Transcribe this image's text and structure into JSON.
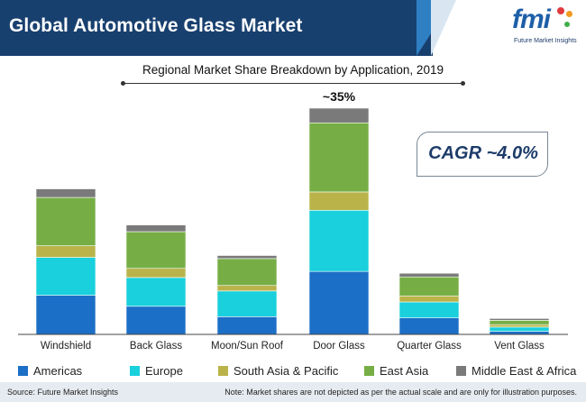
{
  "header": {
    "title": "Global Automotive Glass Market",
    "logo_text": "fmi",
    "logo_subtitle": "Future Market Insights"
  },
  "callouts": {
    "cagr": "CAGR ~4.0%",
    "door_glass_share": "~35%"
  },
  "footer": {
    "source": "Source: Future Market Insights",
    "note": "Note: Market shares are not depicted as per the actual scale and are only for illustration purposes."
  },
  "colors": {
    "header_bg": "#18406f",
    "americas": "#1c6fc6",
    "europe": "#19d0dc",
    "south_asia_pacific": "#b9b34a",
    "east_asia": "#76ae45",
    "middle_east_africa": "#7a7a7a"
  },
  "chart_data": {
    "type": "bar",
    "stacked": true,
    "title": "Regional Market Share Breakdown by Application, 2019",
    "xlabel": "",
    "ylabel": "",
    "ylim": [
      0,
      37
    ],
    "categories": [
      "Windshield",
      "Back Glass",
      "Moon/Sun Roof",
      "Door Glass",
      "Quarter Glass",
      "Vent Glass"
    ],
    "series": [
      {
        "name": "Americas",
        "color": "#1c6fc6",
        "values": [
          6.4,
          4.6,
          2.9,
          10.3,
          2.7,
          0.5
        ]
      },
      {
        "name": "Europe",
        "color": "#19d0dc",
        "values": [
          6.2,
          4.7,
          4.2,
          10.0,
          2.6,
          0.7
        ]
      },
      {
        "name": "South Asia & Pacific",
        "color": "#b9b34a",
        "values": [
          1.9,
          1.5,
          0.9,
          3.0,
          1.0,
          0.4
        ]
      },
      {
        "name": "East Asia",
        "color": "#76ae45",
        "values": [
          7.9,
          6.0,
          4.4,
          11.3,
          3.1,
          0.7
        ]
      },
      {
        "name": "Middle East & Africa",
        "color": "#7a7a7a",
        "values": [
          1.4,
          1.1,
          0.5,
          2.4,
          0.6,
          0.3
        ]
      }
    ],
    "annotations": [
      {
        "category": "Door Glass",
        "text": "~35%"
      }
    ],
    "legend_position": "bottom"
  }
}
